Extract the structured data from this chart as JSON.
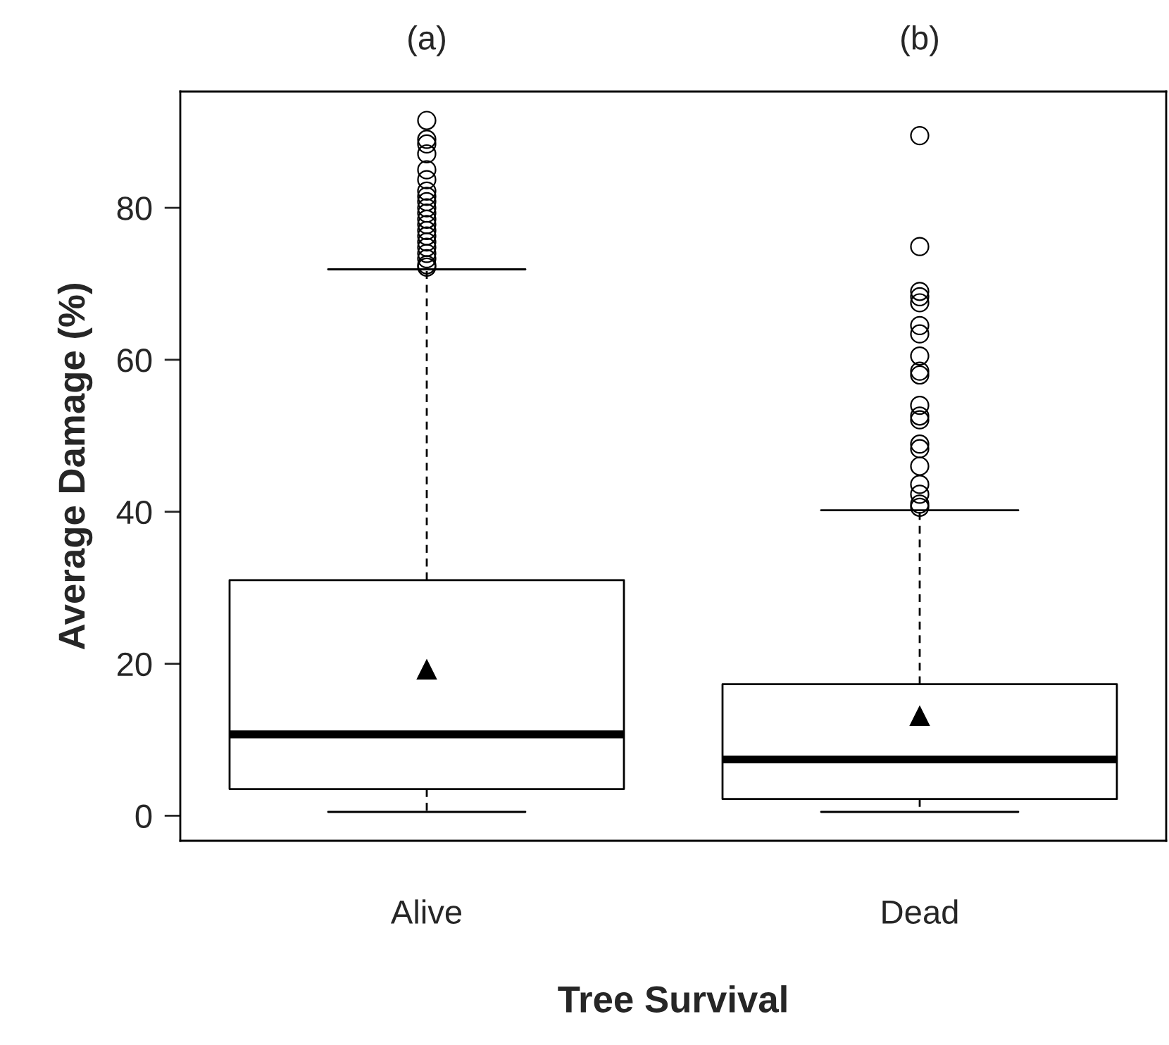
{
  "chart_data": {
    "type": "box",
    "xlabel": "Tree Survival",
    "ylabel": "Average Damage (%)",
    "categories": [
      "Alive",
      "Dead"
    ],
    "annotations": [
      "(a)",
      "(b)"
    ],
    "boxes": [
      {
        "low": 0.5,
        "q1": 3.5,
        "median": 10.7,
        "q3": 31.0,
        "high": 71.9,
        "mean": 19.2,
        "outliers": [
          91.5,
          89.0,
          88.4,
          87.1,
          85.0,
          83.7,
          82.2,
          81.5,
          80.8,
          80.0,
          79.3,
          78.5,
          77.8,
          77.0,
          76.3,
          75.5,
          74.8,
          74.0,
          73.3,
          72.5,
          72.2
        ]
      },
      {
        "low": 0.5,
        "q1": 2.2,
        "median": 7.4,
        "q3": 17.3,
        "high": 40.2,
        "mean": 13.1,
        "outliers": [
          89.5,
          74.9,
          69.0,
          68.3,
          67.5,
          64.5,
          63.4,
          60.5,
          58.5,
          58.0,
          54.0,
          52.6,
          52.1,
          48.9,
          48.3,
          46.0,
          43.6,
          42.3,
          41.0,
          40.6
        ]
      }
    ],
    "ylim": [
      -3.3,
      95.3
    ],
    "yticks": [
      0,
      20,
      40,
      60,
      80
    ],
    "grid": false,
    "legend": false
  }
}
